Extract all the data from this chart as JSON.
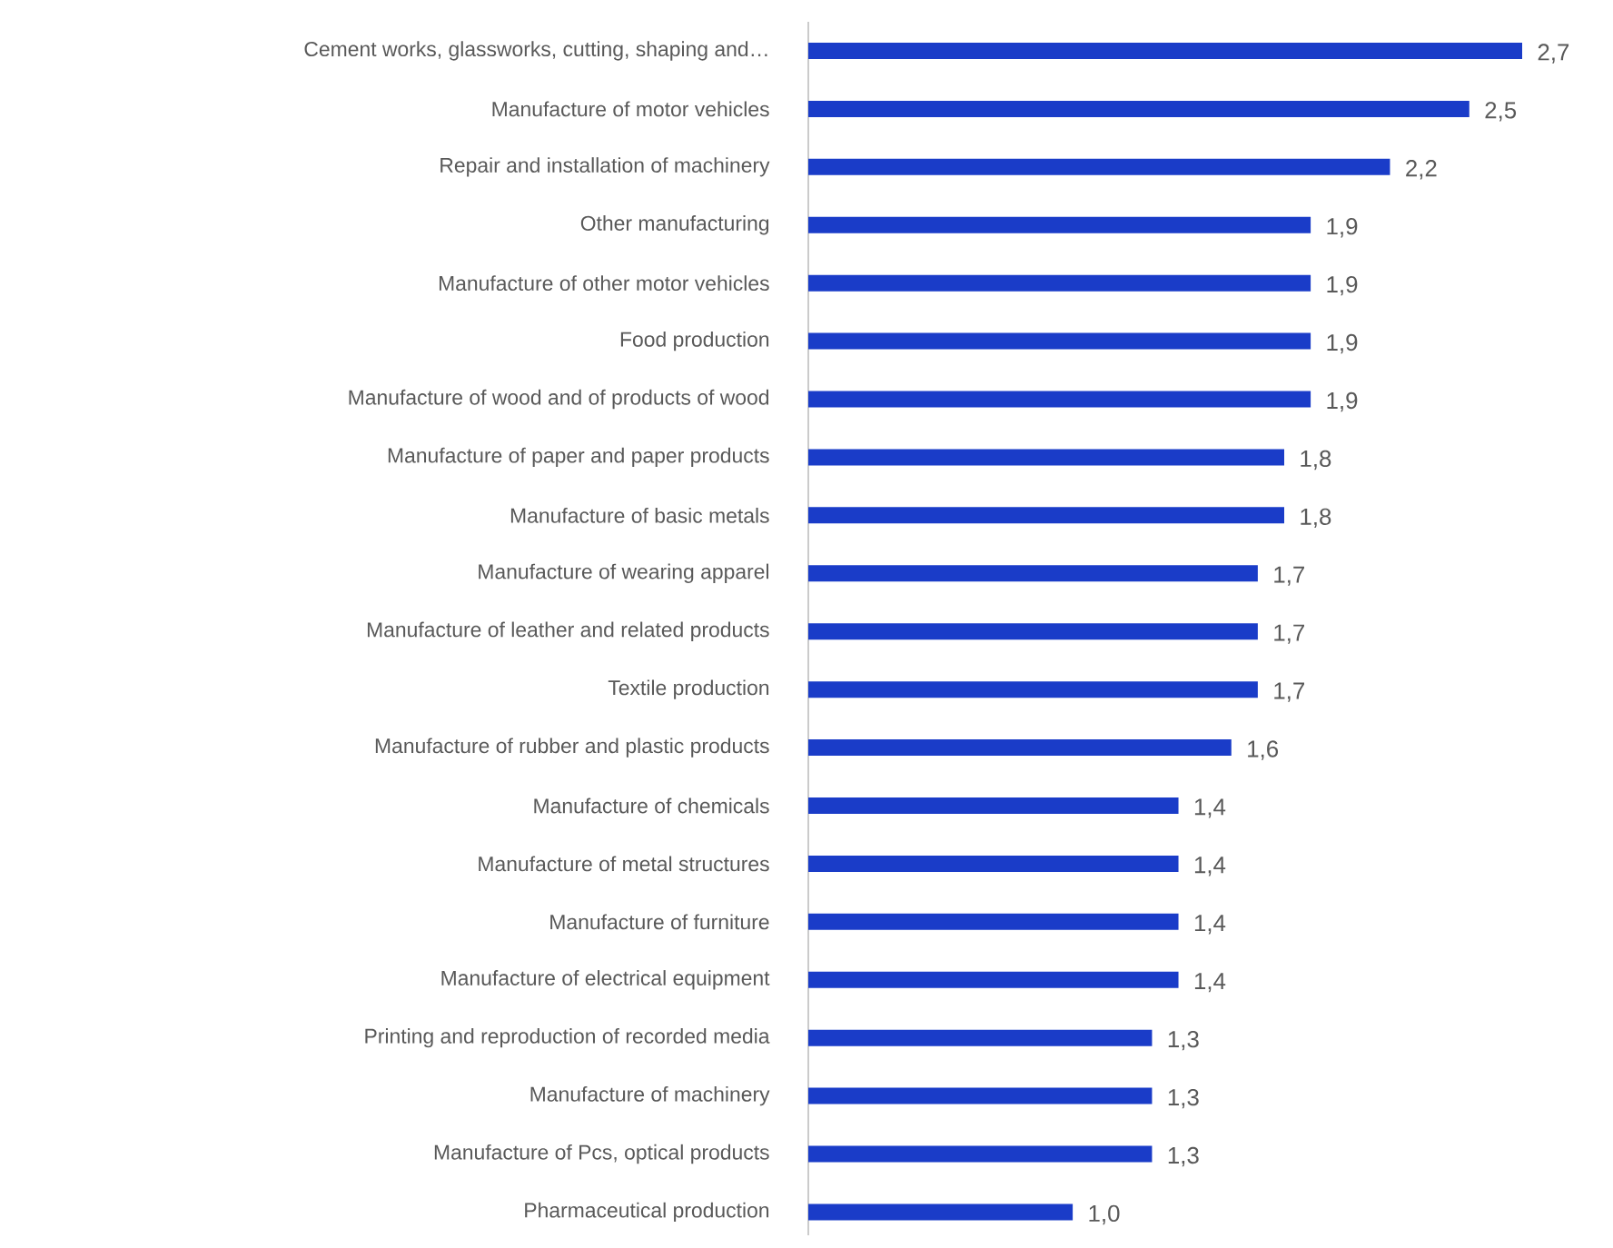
{
  "chart_data": {
    "type": "bar",
    "orientation": "horizontal",
    "color": "#1a3cc8",
    "categories": [
      "Cement works, glassworks, cutting, shaping and…",
      "Manufacture of motor vehicles",
      "Repair and installation of machinery",
      "Other manufacturing",
      "Manufacture of other motor vehicles",
      "Food production",
      "Manufacture of wood and of products of wood",
      "Manufacture of paper and paper products",
      "Manufacture of basic metals",
      "Manufacture of wearing apparel",
      "Manufacture of leather and related products",
      "Textile production",
      "Manufacture of rubber and plastic products",
      "Manufacture of chemicals",
      "Manufacture of metal structures",
      "Manufacture of furniture",
      "Manufacture of electrical equipment",
      "Printing and reproduction of recorded media",
      "Manufacture of machinery",
      "Manufacture of Pcs, optical products",
      "Pharmaceutical production"
    ],
    "values": [
      2.7,
      2.5,
      2.2,
      1.9,
      1.9,
      1.9,
      1.9,
      1.8,
      1.8,
      1.7,
      1.7,
      1.7,
      1.6,
      1.4,
      1.4,
      1.4,
      1.4,
      1.3,
      1.3,
      1.3,
      1.0
    ],
    "value_labels": [
      "2,7",
      "2,5",
      "2,2",
      "1,9",
      "1,9",
      "1,9",
      "1,9",
      "1,8",
      "1,8",
      "1,7",
      "1,7",
      "1,7",
      "1,6",
      "1,4",
      "1,4",
      "1,4",
      "1,4",
      "1,3",
      "1,3",
      "1,3",
      "1,0"
    ]
  }
}
